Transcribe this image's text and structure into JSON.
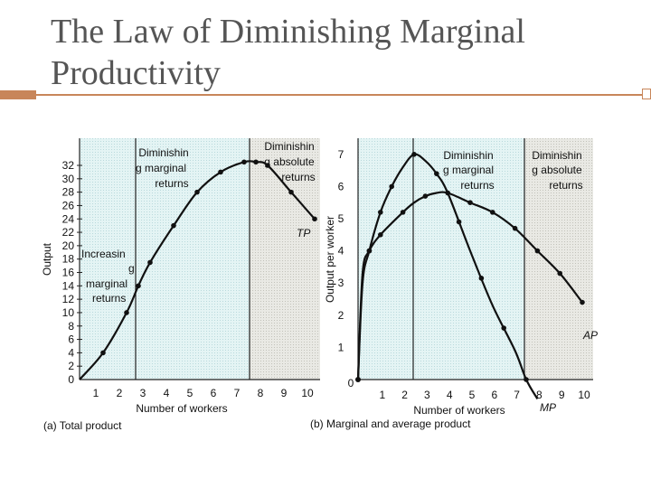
{
  "slide": {
    "title": "The Law of Diminishing Marginal Productivity"
  },
  "chart_data": [
    {
      "type": "line",
      "panel_label": "(a) Total product",
      "xlabel": "Number of workers",
      "ylabel": "Output",
      "x_ticks": [
        1,
        2,
        3,
        4,
        5,
        6,
        7,
        8,
        9,
        10
      ],
      "y_ticks": [
        0,
        2,
        4,
        6,
        8,
        10,
        12,
        14,
        16,
        18,
        20,
        22,
        24,
        26,
        28,
        30,
        32
      ],
      "xlim": [
        0,
        10
      ],
      "ylim": [
        0,
        32
      ],
      "series": [
        {
          "name": "TP",
          "x": [
            0,
            1,
            2,
            2.5,
            3,
            4,
            5,
            6,
            7,
            7.5,
            8,
            9,
            10
          ],
          "y": [
            0,
            4,
            10,
            14,
            17.5,
            23,
            28,
            31,
            32.5,
            32.5,
            32,
            28,
            24
          ]
        }
      ],
      "regions": [
        {
          "label": "Increasing marginal returns",
          "x_from": 0,
          "x_to": 2.3,
          "shading": "light-blue"
        },
        {
          "label": "Diminishing marginal returns",
          "x_from": 2.3,
          "x_to": 7.5,
          "shading": "light-blue"
        },
        {
          "label": "Diminishing absolute returns",
          "x_from": 7.5,
          "x_to": 10,
          "shading": "gray"
        }
      ],
      "annotations": [
        "Increasin",
        "g",
        "marginal",
        "returns",
        "Diminishin",
        "g marginal",
        "returns",
        "Diminishin",
        "g absolute",
        "returns",
        "TP"
      ]
    },
    {
      "type": "line",
      "panel_label": "(b) Marginal and average product",
      "xlabel": "Number of workers",
      "ylabel": "Output per worker",
      "x_ticks": [
        0,
        1,
        2,
        3,
        4,
        5,
        6,
        7,
        8,
        9,
        10
      ],
      "y_ticks": [
        1,
        2,
        3,
        4,
        5,
        6,
        7
      ],
      "xlim": [
        0,
        10
      ],
      "ylim": [
        0,
        7.5
      ],
      "series": [
        {
          "name": "MP",
          "x": [
            0,
            0.2,
            0.5,
            1,
            1.5,
            2,
            2.5,
            3,
            3.5,
            4,
            5,
            6,
            7,
            7.5,
            8
          ],
          "y": [
            0,
            3,
            4,
            5.2,
            6,
            6.6,
            7,
            6.8,
            6.4,
            5.8,
            4,
            2.3,
            0.9,
            0,
            -0.6
          ]
        },
        {
          "name": "AP",
          "x": [
            0,
            0.2,
            0.5,
            1,
            2,
            2.5,
            3,
            3.5,
            4,
            5,
            6,
            7,
            8,
            9,
            10
          ],
          "y": [
            0,
            3.3,
            4,
            4.5,
            5.2,
            5.5,
            5.7,
            5.8,
            5.8,
            5.5,
            5.2,
            4.7,
            4,
            3.3,
            2.4
          ]
        }
      ],
      "regions": [
        {
          "label": "Diminishing marginal returns",
          "x_from": 0,
          "x_to": 7.5,
          "shading": "light-blue"
        },
        {
          "label": "Diminishing absolute returns",
          "x_from": 7.5,
          "x_to": 10,
          "shading": "gray"
        }
      ],
      "annotations": [
        "Diminishin",
        "g marginal",
        "returns",
        "Diminishin",
        "g absolute",
        "returns",
        "AP",
        "MP"
      ]
    }
  ]
}
